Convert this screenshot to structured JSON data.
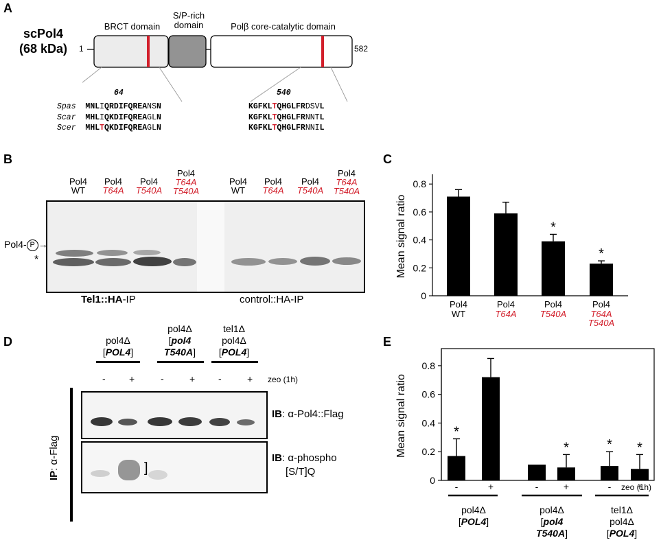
{
  "panelA": {
    "letter": "A",
    "protein_name": "scPol4",
    "protein_mass": "(68 kDa)",
    "start": "1",
    "end": "582",
    "domains": [
      "BRCT domain",
      "S/P-rich\ndomain",
      "Polβ core-catalytic domain"
    ],
    "site1": "64",
    "site2": "540",
    "align_left": [
      {
        "species": "Spas",
        "pre": "MNL",
        "mark": "I",
        "rest": "QRDIFQREANSN",
        "mark_red": false
      },
      {
        "species": "Scar",
        "pre": "MHL",
        "mark": "I",
        "rest": "QKDIFQREAGLN",
        "mark_red": false
      },
      {
        "species": "Scer",
        "pre": "MHL",
        "mark": "T",
        "rest": "QKDIFQREAGLN",
        "mark_red": true
      }
    ],
    "align_right": [
      {
        "pre": "KGFKL",
        "mark": "T",
        "rest": "QHGLFRDSVL"
      },
      {
        "pre": "KGFKL",
        "mark": "T",
        "rest": "QHGLFRNNTL"
      },
      {
        "pre": "KGFKL",
        "mark": "T",
        "rest": "QHGLFRNNIL"
      }
    ]
  },
  "panelB": {
    "letter": "B",
    "lanes": [
      {
        "top": "Pol4",
        "mut": "WT",
        "mut_red": false
      },
      {
        "top": "Pol4",
        "mut": "T64A",
        "mut_red": true
      },
      {
        "top": "Pol4",
        "mut": "T540A",
        "mut_red": true
      },
      {
        "top": "Pol4",
        "mut": "T64A\nT540A",
        "mut_red": true
      },
      {
        "top": "Pol4",
        "mut": "WT",
        "mut_red": false
      },
      {
        "top": "Pol4",
        "mut": "T64A",
        "mut_red": true
      },
      {
        "top": "Pol4",
        "mut": "T540A",
        "mut_red": true
      },
      {
        "top": "Pol4",
        "mut": "T64A\nT540A",
        "mut_red": true
      }
    ],
    "band_label": "Pol4-",
    "phospho_symbol": "P",
    "star": "*",
    "ip_left_bold": "Tel1::HA",
    "ip_left_rest": "-IP",
    "ip_right": "control::HA-IP"
  },
  "panelC": {
    "letter": "C",
    "star": "*",
    "x_labels": [
      {
        "top": "Pol4",
        "mut": "WT",
        "mut_red": false
      },
      {
        "top": "Pol4",
        "mut": "T64A",
        "mut_red": true
      },
      {
        "top": "Pol4",
        "mut": "T540A",
        "mut_red": true
      },
      {
        "top": "Pol4",
        "mut": "T64A\nT540A",
        "mut_red": true
      }
    ]
  },
  "panelD": {
    "letter": "D",
    "groups": [
      {
        "l1": "pol4Δ",
        "l2": "[POL4]"
      },
      {
        "l1": "pol4Δ",
        "l2": "[pol4",
        "l3": "T540A]"
      },
      {
        "l1": "tel1Δ",
        "l2": "pol4Δ",
        "l3": "[POL4]"
      }
    ],
    "minus": "-",
    "plus": "+",
    "zeo": "zeo (1h)",
    "ip_bold": "IP",
    "ip_rest": ": α-Flag",
    "ib_bold": "IB",
    "ib1_rest": ": α-Pol4::Flag",
    "ib2_rest": ": α-phospho",
    "ib2_line2": "[S/T]Q",
    "bracket": "]"
  },
  "panelE": {
    "letter": "E",
    "signs": [
      "-",
      "+",
      "-",
      "+",
      "-",
      "+"
    ],
    "zeo": "zeo (1h)",
    "groups": [
      {
        "l1": "pol4Δ",
        "l2": "[POL4]"
      },
      {
        "l1": "pol4Δ",
        "l2": "[pol4",
        "l3": "T540A]"
      },
      {
        "l1": "tel1Δ",
        "l2": "pol4Δ",
        "l3": "[POL4]"
      }
    ],
    "star": "*"
  },
  "chart_data": [
    {
      "type": "bar",
      "panel": "C",
      "categories": [
        "Pol4 WT",
        "Pol4 T64A",
        "Pol4 T540A",
        "Pol4 T64A T540A"
      ],
      "values": [
        0.71,
        0.59,
        0.39,
        0.23
      ],
      "errors": [
        0.05,
        0.08,
        0.05,
        0.02
      ],
      "significant": [
        false,
        false,
        true,
        true
      ],
      "ylabel": "Mean signal ratio",
      "ylim": [
        0,
        0.85
      ],
      "yticks": [
        "0",
        "0.2",
        "0.4",
        "0.6",
        "0.8"
      ],
      "bar_color": "#000000"
    },
    {
      "type": "bar",
      "panel": "E",
      "categories": [
        "-",
        "+",
        "-",
        "+",
        "-",
        "+"
      ],
      "values": [
        0.17,
        0.72,
        0.11,
        0.09,
        0.1,
        0.08
      ],
      "errors": [
        0.12,
        0.13,
        0,
        0.09,
        0.1,
        0.1
      ],
      "significant": [
        true,
        false,
        false,
        true,
        true,
        true
      ],
      "ylabel": "Mean signal ratio",
      "ylim": [
        0,
        0.9
      ],
      "yticks": [
        "0",
        "0.2",
        "0.4",
        "0.6",
        "0.8"
      ],
      "bar_color": "#000000"
    }
  ]
}
